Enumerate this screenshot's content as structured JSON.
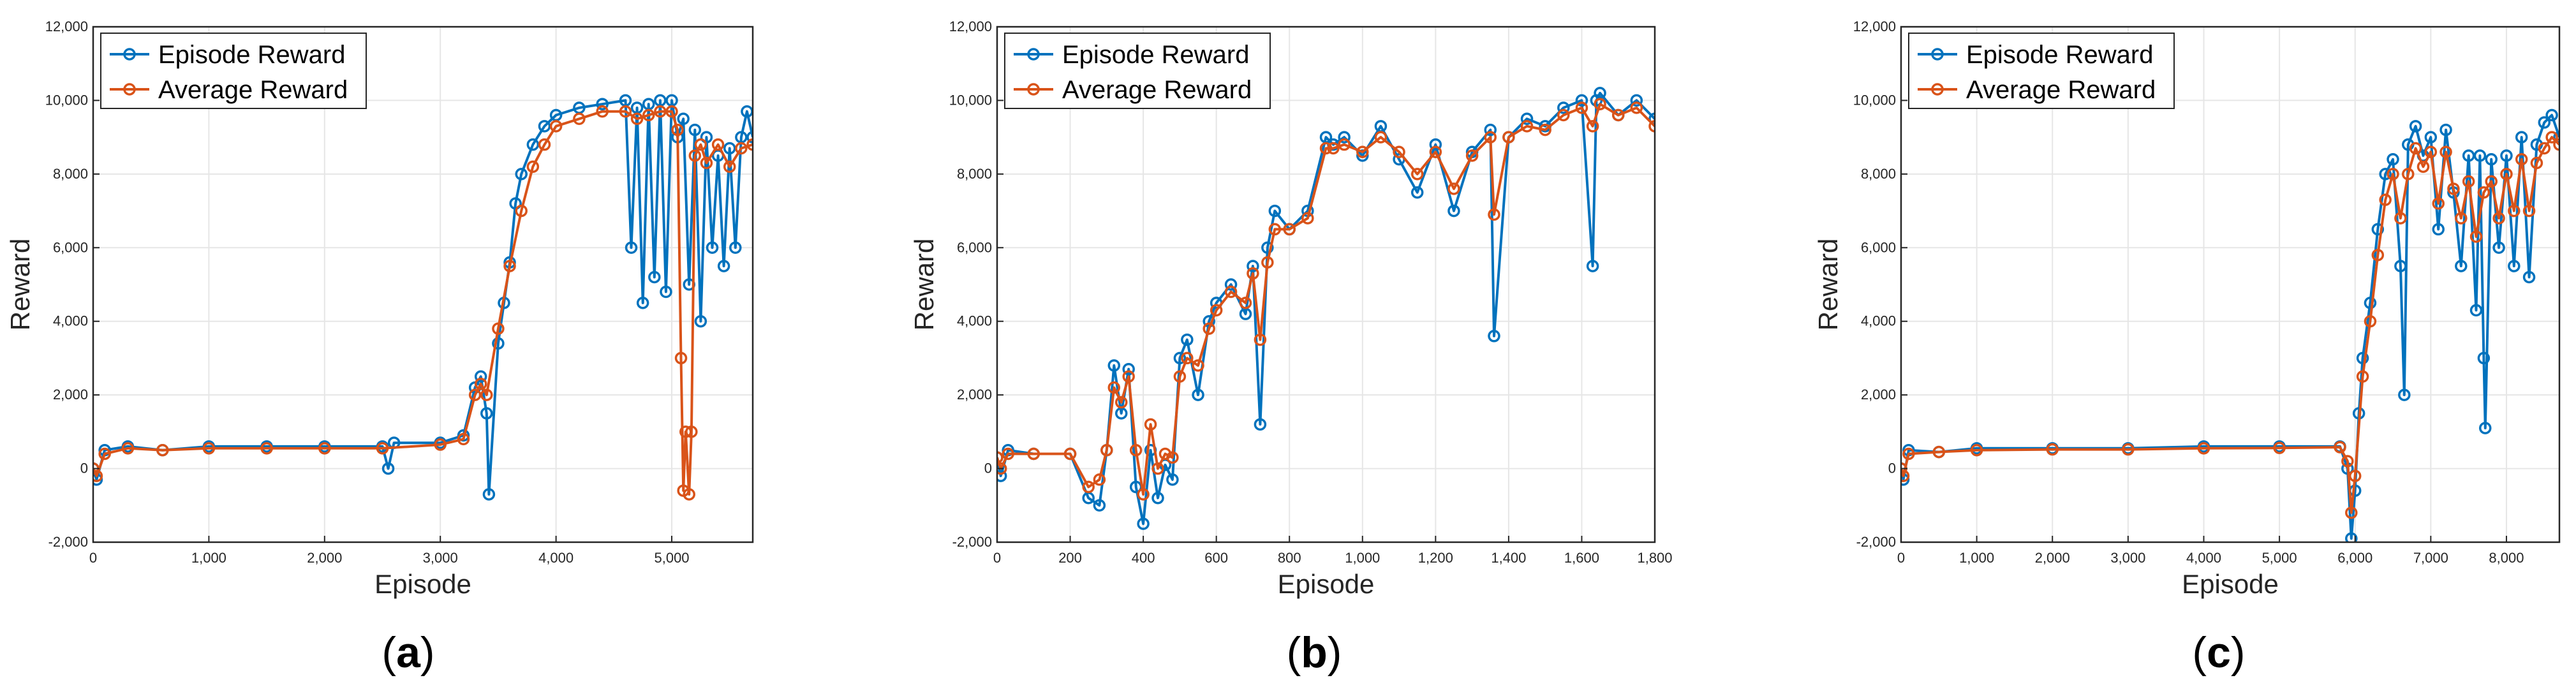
{
  "colors": {
    "episode": "#0072BD",
    "average": "#D95319",
    "grid": "#E6E6E6",
    "axis": "#262626"
  },
  "chart_data": [
    {
      "type": "line",
      "panel_label": "(a)",
      "panel_letter": "a",
      "xlabel": "Episode",
      "ylabel": "Reward",
      "xlim": [
        0,
        5700
      ],
      "ylim": [
        -2000,
        12000
      ],
      "x_ticks": [
        0,
        1000,
        2000,
        3000,
        4000,
        5000
      ],
      "x_tick_labels": [
        "0",
        "1,000",
        "2,000",
        "3,000",
        "4,000",
        "5,000"
      ],
      "y_ticks": [
        -2000,
        0,
        2000,
        4000,
        6000,
        8000,
        10000,
        12000
      ],
      "y_tick_labels": [
        "-2,000",
        "0",
        "2,000",
        "4,000",
        "6,000",
        "8,000",
        "10,000",
        "12,000"
      ],
      "grid": true,
      "legend": "top-left",
      "series": [
        {
          "name": "Episode Reward",
          "x": [
            0,
            30,
            100,
            300,
            600,
            1000,
            1500,
            2000,
            2500,
            2550,
            2600,
            3000,
            3200,
            3300,
            3350,
            3400,
            3420,
            3500,
            3550,
            3600,
            3650,
            3700,
            3800,
            3900,
            4000,
            4200,
            4400,
            4600,
            4650,
            4700,
            4750,
            4800,
            4850,
            4900,
            4950,
            5000,
            5050,
            5100,
            5150,
            5200,
            5250,
            5300,
            5350,
            5400,
            5450,
            5500,
            5550,
            5600,
            5650,
            5700
          ],
          "values": [
            0,
            -300,
            500,
            600,
            500,
            600,
            600,
            600,
            600,
            0,
            700,
            700,
            900,
            2200,
            2500,
            1500,
            -700,
            3400,
            4500,
            5600,
            7200,
            8000,
            8800,
            9300,
            9600,
            9800,
            9900,
            10000,
            6000,
            9800,
            4500,
            9900,
            5200,
            10000,
            4800,
            10000,
            9000,
            9500,
            5000,
            9200,
            4000,
            9000,
            6000,
            8500,
            5500,
            8700,
            6000,
            9000,
            9700,
            9000
          ]
        },
        {
          "name": "Average Reward",
          "x": [
            0,
            30,
            100,
            300,
            600,
            1000,
            1500,
            2000,
            2500,
            3000,
            3200,
            3300,
            3350,
            3400,
            3500,
            3600,
            3700,
            3800,
            3900,
            4000,
            4200,
            4400,
            4600,
            4700,
            4800,
            4900,
            5000,
            5050,
            5080,
            5100,
            5120,
            5150,
            5170,
            5200,
            5250,
            5300,
            5400,
            5500,
            5600,
            5700
          ],
          "values": [
            0,
            -200,
            400,
            550,
            500,
            550,
            550,
            550,
            550,
            650,
            800,
            2000,
            2300,
            2000,
            3800,
            5500,
            7000,
            8200,
            8800,
            9300,
            9500,
            9700,
            9700,
            9500,
            9600,
            9700,
            9700,
            9200,
            3000,
            -600,
            1000,
            -700,
            1000,
            8500,
            8800,
            8300,
            8800,
            8200,
            8700,
            8800
          ]
        }
      ]
    },
    {
      "type": "line",
      "panel_label": "(b)",
      "panel_letter": "b",
      "xlabel": "Episode",
      "ylabel": "Reward",
      "xlim": [
        0,
        1800
      ],
      "ylim": [
        -2000,
        12000
      ],
      "x_ticks": [
        0,
        200,
        400,
        600,
        800,
        1000,
        1200,
        1400,
        1600,
        1800
      ],
      "x_tick_labels": [
        "0",
        "200",
        "400",
        "600",
        "800",
        "1,000",
        "1,200",
        "1,400",
        "1,600",
        "1,800"
      ],
      "y_ticks": [
        -2000,
        0,
        2000,
        4000,
        6000,
        8000,
        10000,
        12000
      ],
      "y_tick_labels": [
        "-2,000",
        "0",
        "2,000",
        "4,000",
        "6,000",
        "8,000",
        "10,000",
        "12,000"
      ],
      "grid": true,
      "legend": "top-left",
      "series": [
        {
          "name": "Episode Reward",
          "x": [
            0,
            10,
            30,
            100,
            200,
            250,
            280,
            300,
            320,
            340,
            360,
            380,
            400,
            420,
            440,
            460,
            480,
            500,
            520,
            550,
            580,
            600,
            640,
            680,
            700,
            720,
            740,
            760,
            800,
            850,
            900,
            920,
            950,
            1000,
            1050,
            1100,
            1150,
            1200,
            1250,
            1300,
            1350,
            1360,
            1400,
            1450,
            1500,
            1550,
            1600,
            1630,
            1640,
            1650,
            1700,
            1750,
            1800
          ],
          "values": [
            300,
            -200,
            500,
            400,
            400,
            -800,
            -1000,
            500,
            2800,
            1500,
            2700,
            -500,
            -1500,
            500,
            -800,
            100,
            -300,
            3000,
            3500,
            2000,
            4000,
            4500,
            5000,
            4200,
            5500,
            1200,
            6000,
            7000,
            6500,
            7000,
            9000,
            8800,
            9000,
            8500,
            9300,
            8400,
            7500,
            8800,
            7000,
            8600,
            9200,
            3600,
            9000,
            9500,
            9300,
            9800,
            10000,
            5500,
            10000,
            10200,
            9600,
            10000,
            9500
          ]
        },
        {
          "name": "Average Reward",
          "x": [
            0,
            10,
            30,
            100,
            200,
            250,
            280,
            300,
            320,
            340,
            360,
            380,
            400,
            420,
            440,
            460,
            480,
            500,
            520,
            550,
            580,
            600,
            640,
            680,
            700,
            720,
            740,
            760,
            800,
            850,
            900,
            920,
            950,
            1000,
            1050,
            1100,
            1150,
            1200,
            1250,
            1300,
            1350,
            1360,
            1400,
            1450,
            1500,
            1550,
            1600,
            1630,
            1650,
            1700,
            1750,
            1800
          ],
          "values": [
            300,
            0,
            400,
            400,
            400,
            -500,
            -300,
            500,
            2200,
            1800,
            2500,
            500,
            -700,
            1200,
            0,
            400,
            300,
            2500,
            3000,
            2800,
            3800,
            4300,
            4800,
            4500,
            5300,
            3500,
            5600,
            6500,
            6500,
            6800,
            8700,
            8700,
            8800,
            8600,
            9000,
            8600,
            8000,
            8600,
            7600,
            8500,
            9000,
            6900,
            9000,
            9300,
            9200,
            9600,
            9800,
            9300,
            9900,
            9600,
            9800,
            9300
          ]
        }
      ]
    },
    {
      "type": "line",
      "panel_label": "(c)",
      "panel_letter": "c",
      "xlabel": "Episode",
      "ylabel": "Reward",
      "xlim": [
        0,
        8700
      ],
      "ylim": [
        -2000,
        12000
      ],
      "x_ticks": [
        0,
        1000,
        2000,
        3000,
        4000,
        5000,
        6000,
        7000,
        8000
      ],
      "x_tick_labels": [
        "0",
        "1,000",
        "2,000",
        "3,000",
        "4,000",
        "5,000",
        "6,000",
        "7,000",
        "8,000"
      ],
      "y_ticks": [
        -2000,
        0,
        2000,
        4000,
        6000,
        8000,
        10000,
        12000
      ],
      "y_tick_labels": [
        "-2,000",
        "0",
        "2,000",
        "4,000",
        "6,000",
        "8,000",
        "10,000",
        "12,000"
      ],
      "grid": true,
      "legend": "top-left",
      "series": [
        {
          "name": "Episode Reward",
          "x": [
            0,
            30,
            100,
            500,
            1000,
            2000,
            3000,
            4000,
            5000,
            5800,
            5900,
            5950,
            6000,
            6050,
            6100,
            6200,
            6300,
            6400,
            6500,
            6600,
            6650,
            6700,
            6800,
            6900,
            7000,
            7100,
            7200,
            7300,
            7400,
            7500,
            7600,
            7650,
            7700,
            7720,
            7800,
            7900,
            8000,
            8100,
            8200,
            8300,
            8400,
            8500,
            8600,
            8700
          ],
          "values": [
            0,
            -300,
            500,
            450,
            550,
            550,
            550,
            600,
            600,
            600,
            0,
            -1900,
            -600,
            1500,
            3000,
            4500,
            6500,
            8000,
            8400,
            5500,
            2000,
            8800,
            9300,
            8500,
            9000,
            6500,
            9200,
            7500,
            5500,
            8500,
            4300,
            8500,
            3000,
            1100,
            8400,
            6000,
            8500,
            5500,
            9000,
            5200,
            8800,
            9400,
            9600,
            9000
          ]
        },
        {
          "name": "Average Reward",
          "x": [
            0,
            30,
            100,
            500,
            1000,
            2000,
            3000,
            4000,
            5000,
            5800,
            5900,
            5950,
            6000,
            6100,
            6200,
            6300,
            6400,
            6500,
            6600,
            6700,
            6800,
            6900,
            7000,
            7100,
            7200,
            7300,
            7400,
            7500,
            7600,
            7700,
            7800,
            7900,
            8000,
            8100,
            8200,
            8300,
            8400,
            8500,
            8600,
            8700
          ],
          "values": [
            0,
            -200,
            400,
            450,
            500,
            520,
            520,
            550,
            560,
            580,
            200,
            -1200,
            -200,
            2500,
            4000,
            5800,
            7300,
            8000,
            6800,
            8000,
            8700,
            8200,
            8600,
            7200,
            8600,
            7600,
            6800,
            7800,
            6300,
            7500,
            7800,
            6800,
            8000,
            7000,
            8400,
            7000,
            8300,
            8700,
            9000,
            8800
          ]
        }
      ]
    }
  ]
}
